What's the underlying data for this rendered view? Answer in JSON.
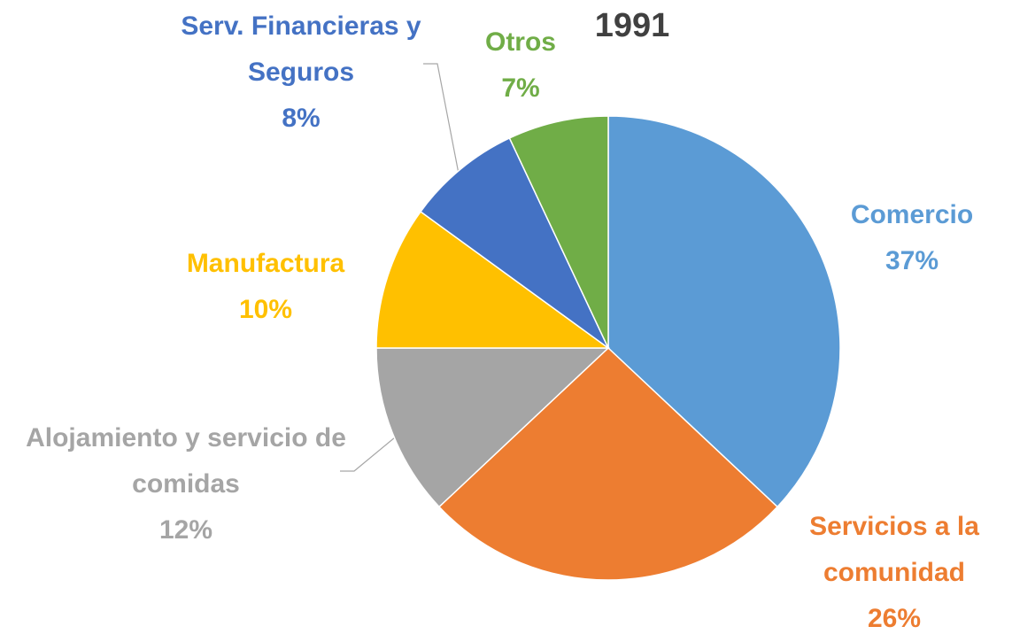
{
  "chart_data": {
    "type": "pie",
    "title": "1991",
    "categories": [
      "Comercio",
      "Servicios a la comunidad",
      "Alojamiento y servicio de comidas",
      "Manufactura",
      "Serv. Financieras y Seguros",
      "Otros"
    ],
    "values": [
      37,
      26,
      12,
      10,
      8,
      7
    ],
    "value_labels": [
      "37%",
      "26%",
      "12%",
      "10%",
      "8%",
      "7%"
    ],
    "colors": [
      "#5b9bd5",
      "#ed7d31",
      "#a5a5a5",
      "#ffc000",
      "#4472c4",
      "#70ad47"
    ]
  }
}
